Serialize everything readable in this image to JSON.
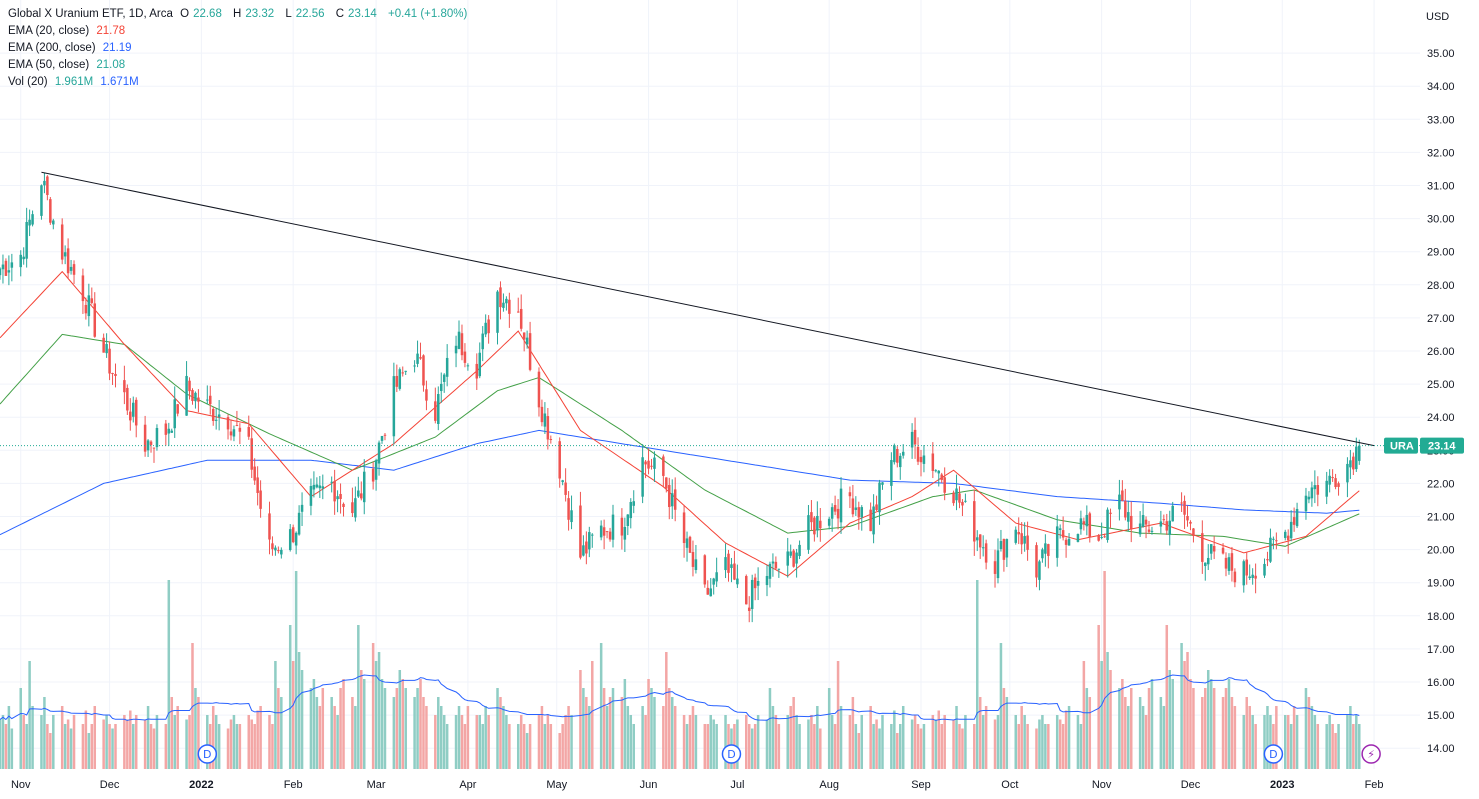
{
  "header": {
    "symbol_desc": "Global X Uranium ETF, 1D, Arca",
    "ohlc": [
      {
        "label": "O",
        "value": "22.68"
      },
      {
        "label": "H",
        "value": "23.32"
      },
      {
        "label": "L",
        "value": "22.56"
      },
      {
        "label": "C",
        "value": "23.14"
      }
    ],
    "change": "+0.41 (+1.80%)",
    "indicators": [
      {
        "name": "EMA (20, close)",
        "value": "21.78",
        "color": "#f44336"
      },
      {
        "name": "EMA (200, close)",
        "value": "21.19",
        "color": "#2962ff"
      },
      {
        "name": "EMA (50, close)",
        "value": "21.08",
        "color": "#43a047"
      }
    ],
    "volume": {
      "name": "Vol (20)",
      "value1": "1.961M",
      "value2": "1.671M"
    }
  },
  "price_axis": {
    "currency": "USD",
    "ticks": [
      "35.00",
      "34.00",
      "33.00",
      "32.00",
      "31.00",
      "30.00",
      "29.00",
      "28.00",
      "27.00",
      "26.00",
      "25.00",
      "24.00",
      "23.00",
      "22.00",
      "21.00",
      "20.00",
      "19.00",
      "18.00",
      "17.00",
      "16.00",
      "15.00",
      "14.00"
    ]
  },
  "time_axis": {
    "labels": [
      "Nov",
      "Dec",
      "2022",
      "Feb",
      "Mar",
      "Apr",
      "May",
      "Jun",
      "Jul",
      "Aug",
      "Sep",
      "Oct",
      "Nov",
      "Dec",
      "2023",
      "Feb"
    ]
  },
  "last_price_tag": {
    "symbol": "URA",
    "price": "23.14",
    "color": "#22ab94"
  },
  "markers": [
    {
      "type": "dividend",
      "label": "D",
      "at": "2022"
    },
    {
      "type": "dividend",
      "label": "D",
      "at": "Jul"
    },
    {
      "type": "dividend",
      "label": "D",
      "at": "2023"
    },
    {
      "type": "earnings",
      "label": "⚡",
      "at": "Feb"
    }
  ],
  "colors": {
    "up": "#26a69a",
    "down": "#ef5350",
    "vol_up": "#8fcdc4",
    "vol_down": "#f3a6a5",
    "ema20": "#f44336",
    "ema50": "#43a047",
    "ema200": "#2962ff",
    "vol_ma": "#2962ff",
    "trendline": "#131722",
    "grid": "#f0f3fa"
  },
  "chart_data": {
    "type": "candlestick",
    "title": "Global X Uranium ETF, 1D, Arca",
    "ylabel": "USD",
    "ylim": [
      13.5,
      36.2
    ],
    "grid": true,
    "x_start": "2021-10-25",
    "x_end": "2023-02-03",
    "last": {
      "open": 22.68,
      "high": 23.32,
      "low": 22.56,
      "close": 23.14,
      "change": 0.41,
      "change_pct": 1.8
    },
    "close_path": [
      [
        "2021-10-25",
        28.5
      ],
      [
        "2021-11-01",
        28.9
      ],
      [
        "2021-11-08",
        31.2
      ],
      [
        "2021-11-15",
        29.0
      ],
      [
        "2021-11-22",
        27.8
      ],
      [
        "2021-11-29",
        26.0
      ],
      [
        "2021-12-06",
        24.6
      ],
      [
        "2021-12-13",
        23.2
      ],
      [
        "2021-12-20",
        23.6
      ],
      [
        "2021-12-27",
        24.9
      ],
      [
        "2022-01-03",
        24.3
      ],
      [
        "2022-01-10",
        24.0
      ],
      [
        "2022-01-17",
        23.0
      ],
      [
        "2022-01-24",
        20.0
      ],
      [
        "2022-01-31",
        20.4
      ],
      [
        "2022-02-07",
        21.5
      ],
      [
        "2022-02-14",
        22.0
      ],
      [
        "2022-02-21",
        21.2
      ],
      [
        "2022-02-28",
        22.5
      ],
      [
        "2022-03-07",
        24.8
      ],
      [
        "2022-03-14",
        25.9
      ],
      [
        "2022-03-21",
        24.2
      ],
      [
        "2022-03-28",
        26.4
      ],
      [
        "2022-04-04",
        25.6
      ],
      [
        "2022-04-11",
        27.8
      ],
      [
        "2022-04-18",
        27.3
      ],
      [
        "2022-04-25",
        24.6
      ],
      [
        "2022-05-02",
        22.5
      ],
      [
        "2022-05-09",
        19.8
      ],
      [
        "2022-05-16",
        20.6
      ],
      [
        "2022-05-23",
        20.8
      ],
      [
        "2022-05-30",
        22.7
      ],
      [
        "2022-06-06",
        22.2
      ],
      [
        "2022-06-13",
        20.2
      ],
      [
        "2022-06-20",
        18.6
      ],
      [
        "2022-06-27",
        19.4
      ],
      [
        "2022-07-04",
        18.4
      ],
      [
        "2022-07-11",
        19.3
      ],
      [
        "2022-07-18",
        19.6
      ],
      [
        "2022-07-25",
        20.6
      ],
      [
        "2022-08-01",
        21.2
      ],
      [
        "2022-08-08",
        21.6
      ],
      [
        "2022-08-15",
        20.8
      ],
      [
        "2022-08-22",
        22.8
      ],
      [
        "2022-08-29",
        23.2
      ],
      [
        "2022-09-05",
        22.6
      ],
      [
        "2022-09-12",
        21.8
      ],
      [
        "2022-09-19",
        20.6
      ],
      [
        "2022-09-26",
        19.6
      ],
      [
        "2022-10-03",
        20.8
      ],
      [
        "2022-10-10",
        19.4
      ],
      [
        "2022-10-17",
        20.3
      ],
      [
        "2022-10-24",
        20.8
      ],
      [
        "2022-10-31",
        20.4
      ],
      [
        "2022-11-07",
        21.4
      ],
      [
        "2022-11-14",
        20.6
      ],
      [
        "2022-11-21",
        20.8
      ],
      [
        "2022-11-28",
        21.2
      ],
      [
        "2022-12-05",
        20.0
      ],
      [
        "2022-12-12",
        19.5
      ],
      [
        "2022-12-19",
        19.3
      ],
      [
        "2022-12-26",
        19.7
      ],
      [
        "2023-01-02",
        20.5
      ],
      [
        "2023-01-09",
        21.8
      ],
      [
        "2023-01-16",
        22.0
      ],
      [
        "2023-01-23",
        22.6
      ],
      [
        "2023-01-27",
        23.14
      ]
    ],
    "ema20_path": [
      [
        "2021-10-25",
        26.4
      ],
      [
        "2021-11-15",
        28.4
      ],
      [
        "2021-12-06",
        26.2
      ],
      [
        "2021-12-27",
        24.2
      ],
      [
        "2022-01-17",
        23.8
      ],
      [
        "2022-02-07",
        21.6
      ],
      [
        "2022-03-07",
        23.2
      ],
      [
        "2022-04-04",
        25.4
      ],
      [
        "2022-04-18",
        26.6
      ],
      [
        "2022-05-09",
        23.6
      ],
      [
        "2022-06-06",
        21.9
      ],
      [
        "2022-06-27",
        20.2
      ],
      [
        "2022-07-18",
        19.2
      ],
      [
        "2022-08-08",
        20.8
      ],
      [
        "2022-08-29",
        21.6
      ],
      [
        "2022-09-12",
        22.4
      ],
      [
        "2022-10-03",
        20.8
      ],
      [
        "2022-10-24",
        20.3
      ],
      [
        "2022-11-21",
        20.8
      ],
      [
        "2022-12-19",
        19.9
      ],
      [
        "2023-01-09",
        20.4
      ],
      [
        "2023-01-27",
        21.78
      ]
    ],
    "ema50_path": [
      [
        "2021-10-25",
        24.4
      ],
      [
        "2021-11-15",
        26.5
      ],
      [
        "2021-12-06",
        26.2
      ],
      [
        "2021-12-27",
        24.7
      ],
      [
        "2022-01-24",
        23.5
      ],
      [
        "2022-02-21",
        22.4
      ],
      [
        "2022-03-21",
        23.4
      ],
      [
        "2022-04-11",
        24.8
      ],
      [
        "2022-04-25",
        25.2
      ],
      [
        "2022-05-23",
        23.6
      ],
      [
        "2022-06-20",
        21.8
      ],
      [
        "2022-07-18",
        20.5
      ],
      [
        "2022-08-08",
        20.7
      ],
      [
        "2022-09-05",
        21.6
      ],
      [
        "2022-09-19",
        21.8
      ],
      [
        "2022-10-17",
        20.9
      ],
      [
        "2022-11-14",
        20.5
      ],
      [
        "2022-12-12",
        20.4
      ],
      [
        "2023-01-02",
        20.1
      ],
      [
        "2023-01-27",
        21.08
      ]
    ],
    "ema200_path": [
      [
        "2021-10-25",
        20.45
      ],
      [
        "2021-11-29",
        22.0
      ],
      [
        "2022-01-03",
        22.7
      ],
      [
        "2022-02-07",
        22.7
      ],
      [
        "2022-03-07",
        22.4
      ],
      [
        "2022-04-04",
        23.2
      ],
      [
        "2022-04-25",
        23.6
      ],
      [
        "2022-05-30",
        23.1
      ],
      [
        "2022-07-04",
        22.6
      ],
      [
        "2022-08-08",
        22.1
      ],
      [
        "2022-09-12",
        22.0
      ],
      [
        "2022-10-17",
        21.6
      ],
      [
        "2022-11-21",
        21.4
      ],
      [
        "2022-12-19",
        21.2
      ],
      [
        "2023-01-16",
        21.1
      ],
      [
        "2023-01-27",
        21.19
      ]
    ],
    "trendline": [
      [
        "2021-11-08",
        31.4
      ],
      [
        "2023-02-01",
        23.14
      ]
    ],
    "volume": {
      "ma20_last": "1.671M",
      "last": "1.961M",
      "relative_levels": [
        0.55,
        0.6,
        0.5,
        0.7,
        0.45,
        0.9,
        0.6,
        0.5,
        1.2,
        0.7,
        0.6,
        0.8,
        0.5,
        0.4,
        0.6,
        0.7,
        0.5,
        0.55,
        0.45,
        0.6,
        0.5,
        0.65,
        0.4,
        0.5,
        0.7,
        0.55,
        0.6,
        0.5,
        0.45,
        0.5,
        0.6,
        0.55,
        0.65,
        0.5,
        0.6,
        0.55,
        0.7,
        0.5,
        0.45,
        0.6,
        0.5,
        2.1,
        0.8,
        0.6,
        0.7,
        0.55,
        0.6,
        1.4,
        0.9,
        0.8,
        0.6,
        0.5,
        0.7,
        0.6,
        0.5,
        0.45,
        0.55,
        0.6,
        0.5,
        0.5,
        0.6,
        0.55,
        0.5,
        0.65,
        0.7,
        0.6,
        0.5,
        1.2,
        0.9,
        0.8,
        1.6,
        1.2,
        2.2,
        1.3,
        1.1,
        0.9,
        1.0,
        0.8,
        0.7,
        0.9,
        0.8,
        0.7,
        0.6,
        0.9,
        1.0,
        0.8,
        0.7,
        1.6,
        1.1,
        1.0,
        1.4,
        1.2,
        1.3,
        1.0,
        0.9,
        0.8,
        0.9,
        1.1,
        1.0,
        0.9,
        0.8,
        0.9,
        1.0,
        0.8,
        0.7,
        0.6,
        0.8,
        0.7,
        0.6,
        0.5,
        0.6,
        0.7,
        0.6,
        0.5,
        0.7,
        0.6,
        0.6,
        0.5,
        0.7,
        0.6,
        0.9,
        0.8,
        0.7,
        0.6,
        0.5,
        0.5,
        0.6,
        0.5,
        0.4,
        0.5,
        0.6,
        0.7,
        0.5,
        0.6,
        0.5,
        0.4,
        0.5,
        0.6,
        0.7,
        0.6,
        1.1,
        0.9,
        0.8,
        0.7,
        1.2,
        1.4,
        0.9,
        0.7,
        0.8,
        0.9,
        0.8,
        1.0,
        0.7,
        0.6,
        0.5,
        0.7,
        0.6,
        1.0,
        0.9,
        0.8,
        0.7,
        1.3,
        0.9,
        0.8,
        0.7,
        0.6,
        0.5,
        0.6,
        0.7,
        0.6,
        0.5,
        0.5,
        0.6,
        0.55,
        0.5,
        0.6,
        0.5,
        0.45,
        0.5,
        0.55,
        0.6,
        0.5,
        0.45,
        0.5,
        0.6,
        0.55,
        0.9,
        0.7,
        0.6,
        0.5,
        0.6,
        0.7,
        0.8,
        0.6,
        0.5
      ]
    }
  }
}
